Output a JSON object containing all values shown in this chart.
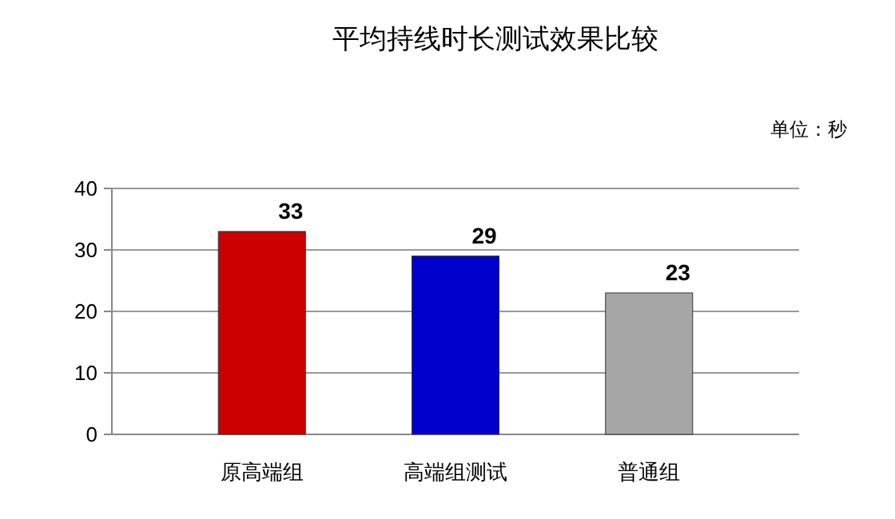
{
  "chart_data": {
    "type": "bar",
    "title": "平均持线时长测试效果比较",
    "annotations": [
      "单位：秒"
    ],
    "categories": [
      "原高端组",
      "高端组测试",
      "普通组"
    ],
    "values": [
      33,
      29,
      23
    ],
    "colors": [
      "#cc0000",
      "#0000cc",
      "#a6a6a6"
    ],
    "ylim": [
      0,
      40
    ],
    "yticks": [
      0,
      10,
      20,
      30,
      40
    ],
    "grid": "y",
    "data_labels": true
  }
}
